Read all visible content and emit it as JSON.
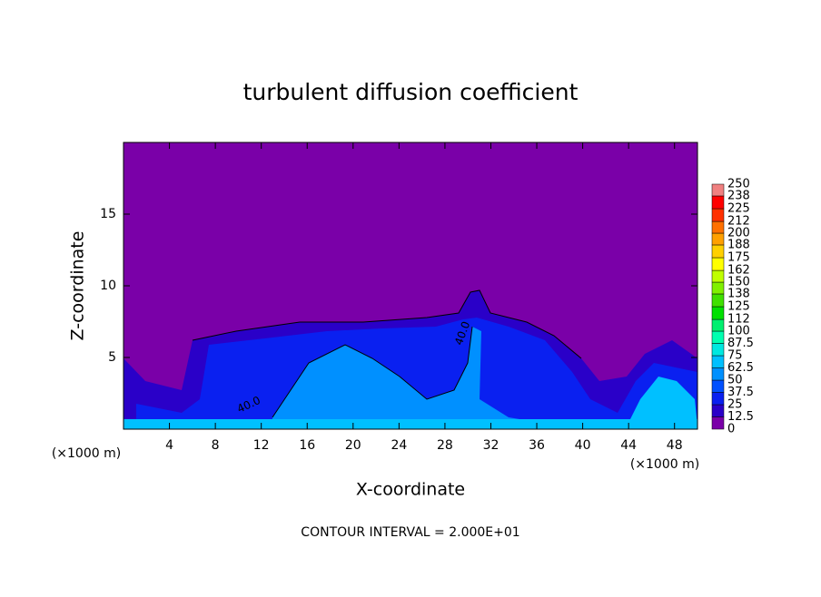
{
  "chart_data": {
    "type": "contour",
    "title": "turbulent diffusion coefficient",
    "x_label": "X-coordinate",
    "y_label": "Z-coordinate",
    "x_unit": "(×1000 m)",
    "y_unit": "(×1000 m)",
    "footnote": "CONTOUR INTERVAL = 2.000E+01",
    "contour_labels": [
      "40.0",
      "40.0"
    ],
    "xlim": [
      0,
      50
    ],
    "xticks": [
      4,
      8,
      12,
      16,
      20,
      24,
      28,
      32,
      36,
      40,
      44,
      48
    ],
    "ylim": [
      0,
      20
    ],
    "yticks": [
      5,
      10,
      15
    ],
    "levels": [
      0,
      12.5,
      25,
      37.5,
      50,
      62.5,
      75,
      87.5,
      100,
      112,
      125,
      138,
      150,
      162,
      175,
      188,
      200,
      212,
      225,
      238,
      250
    ],
    "colors": [
      "#7a00a8",
      "#2a00c8",
      "#0a20f0",
      "#0050ff",
      "#0090ff",
      "#00c0ff",
      "#00e8e0",
      "#00ffb0",
      "#00f070",
      "#00e000",
      "#40e000",
      "#80f000",
      "#c0ff00",
      "#ffff00",
      "#ffd000",
      "#ffa000",
      "#ff7000",
      "#ff3000",
      "#ff0000",
      "#f08080"
    ]
  }
}
